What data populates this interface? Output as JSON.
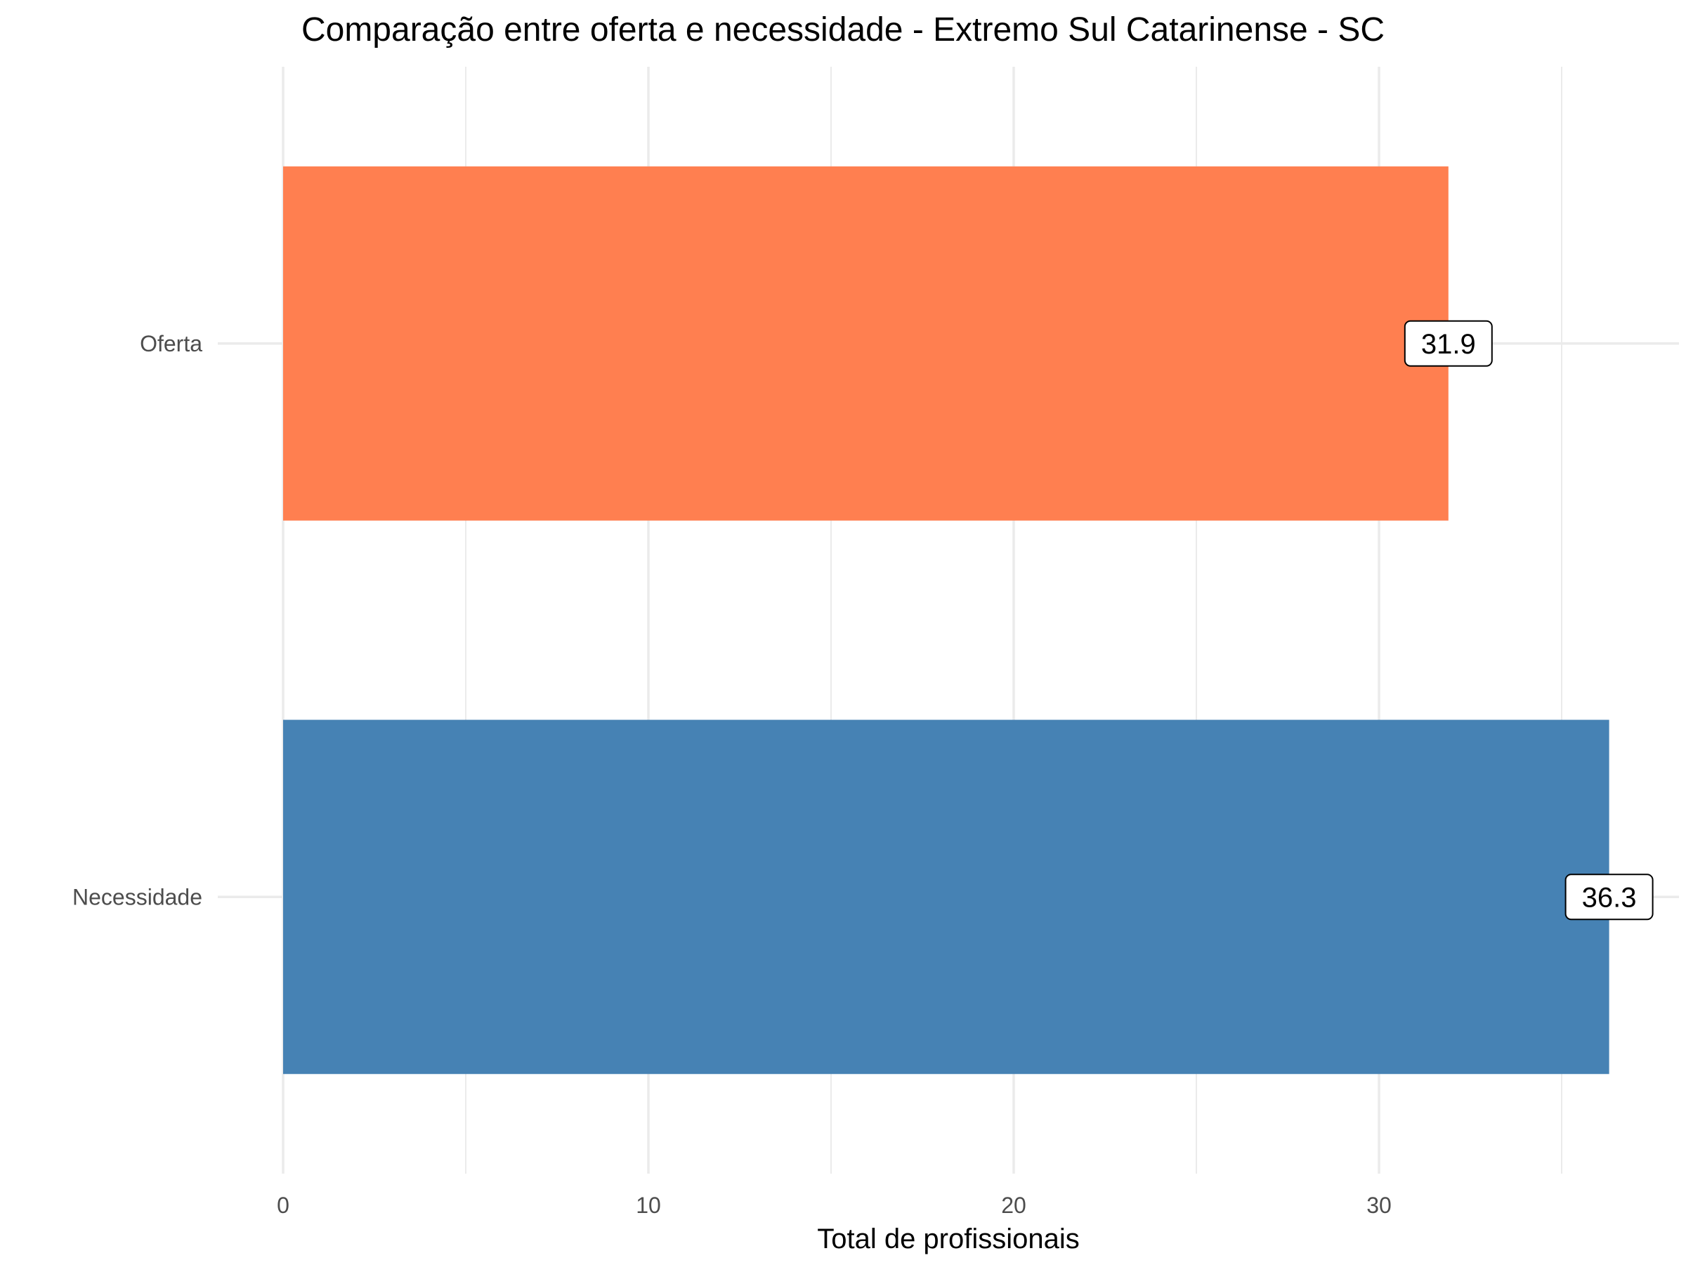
{
  "chart_data": {
    "type": "bar",
    "orientation": "horizontal",
    "title": "Comparação entre oferta e necessidade - Extremo Sul Catarinense - SC",
    "xlabel": "Total de profissionais",
    "ylabel": "",
    "categories": [
      "Oferta",
      "Necessidade"
    ],
    "values": [
      31.9,
      36.3
    ],
    "data_labels": [
      "31.9",
      "36.3"
    ],
    "colors": [
      "#FF7F50",
      "#4682B4"
    ],
    "x_ticks": [
      0,
      10,
      20,
      30
    ],
    "x_tick_labels": [
      "0",
      "10",
      "20",
      "30"
    ],
    "xlim": [
      0,
      38.1
    ],
    "grid": true,
    "legend": "none"
  }
}
